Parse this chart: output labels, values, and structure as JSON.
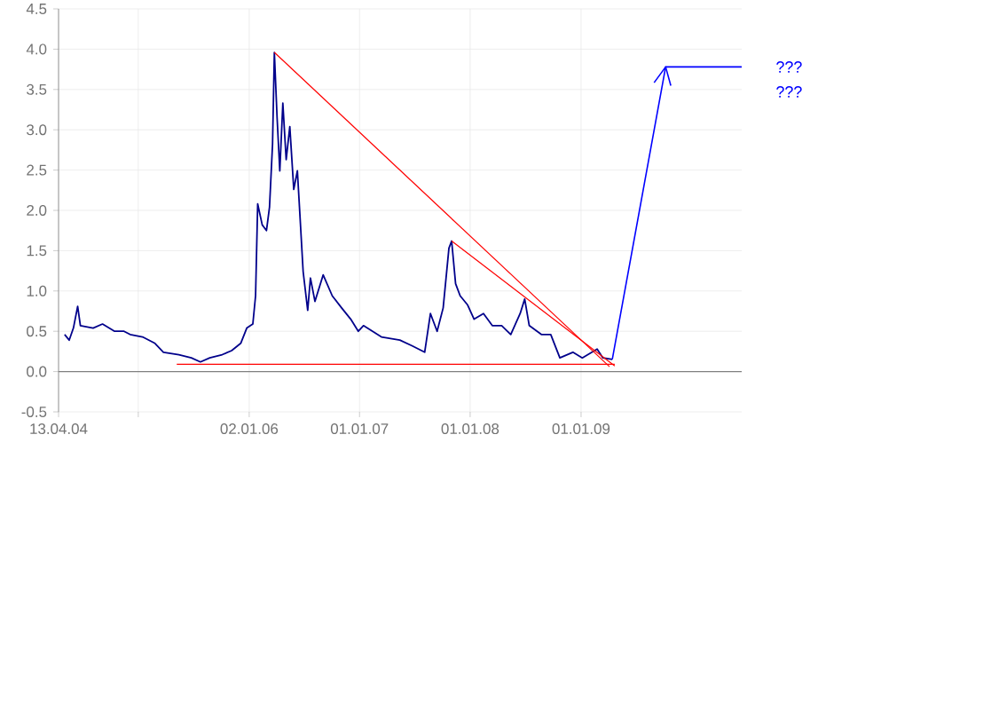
{
  "chart_data": {
    "type": "line",
    "xlim": [
      "2004-04-13",
      "2010-06-15"
    ],
    "ylim": [
      -0.5,
      4.5
    ],
    "xticks": [
      {
        "value": "2004-04-13",
        "label": "13.04.04"
      },
      {
        "value": "2005-01-01",
        "label": null
      },
      {
        "value": "2006-01-02",
        "label": "02.01.06"
      },
      {
        "value": "2007-01-01",
        "label": "01.01.07"
      },
      {
        "value": "2008-01-01",
        "label": "01.01.08"
      },
      {
        "value": "2009-01-01",
        "label": "01.01.09"
      }
    ],
    "yticks": [
      -0.5,
      {
        "value": 0,
        "label": "0.0"
      },
      0.5,
      {
        "value": 1,
        "label": "1.0"
      },
      1.5,
      {
        "value": 2,
        "label": "2.0"
      },
      2.5,
      {
        "value": 3,
        "label": "3.0"
      },
      3.5,
      {
        "value": 4,
        "label": "4.0"
      },
      4.5
    ],
    "grid": true,
    "ref_lines": [
      {
        "axis": "y",
        "value": 0,
        "color": "#808080"
      }
    ],
    "annotations": [
      "???",
      "???"
    ],
    "series": [
      {
        "color": "#00008b",
        "x": [
          "2004-05-03",
          "2004-05-18",
          "2004-06-01",
          "2004-06-15",
          "2004-06-24",
          "2004-08-05",
          "2004-09-05",
          "2004-10-15",
          "2004-11-15",
          "2004-12-05",
          "2005-01-15",
          "2005-02-25",
          "2005-03-25",
          "2005-05-15",
          "2005-06-25",
          "2005-07-25",
          "2005-08-25",
          "2005-10-05",
          "2005-11-05",
          "2005-12-05",
          "2005-12-25",
          "2006-01-14",
          "2006-01-23",
          "2006-01-30",
          "2006-02-14",
          "2006-02-28",
          "2006-03-10",
          "2006-03-20",
          "2006-03-26",
          "2006-04-04",
          "2006-04-13",
          "2006-04-23",
          "2006-05-04",
          "2006-05-16",
          "2006-05-29",
          "2006-06-10",
          "2006-06-19",
          "2006-06-29",
          "2006-07-14",
          "2006-07-23",
          "2006-08-07",
          "2006-09-03",
          "2006-10-03",
          "2006-11-03",
          "2006-12-03",
          "2006-12-28",
          "2007-01-14",
          "2007-03-14",
          "2007-05-14",
          "2007-06-23",
          "2007-08-04",
          "2007-08-23",
          "2007-09-14",
          "2007-10-04",
          "2007-10-23",
          "2007-11-01",
          "2007-11-14",
          "2007-11-29",
          "2007-12-23",
          "2008-01-14",
          "2008-02-14",
          "2008-03-14",
          "2008-04-14",
          "2008-05-14",
          "2008-06-14",
          "2008-06-29",
          "2008-07-14",
          "2008-08-23",
          "2008-09-23",
          "2008-10-23",
          "2008-12-05",
          "2009-01-05",
          "2009-02-23",
          "2009-03-14",
          "2009-04-14"
        ],
        "values": [
          0.46,
          0.39,
          0.54,
          0.81,
          0.57,
          0.54,
          0.59,
          0.5,
          0.5,
          0.46,
          0.43,
          0.35,
          0.24,
          0.21,
          0.17,
          0.12,
          0.17,
          0.21,
          0.26,
          0.35,
          0.54,
          0.59,
          0.94,
          2.08,
          1.82,
          1.75,
          2.04,
          2.82,
          3.96,
          3.15,
          2.49,
          3.33,
          2.63,
          3.04,
          2.26,
          2.49,
          1.9,
          1.24,
          0.76,
          1.16,
          0.87,
          1.2,
          0.94,
          0.79,
          0.65,
          0.5,
          0.57,
          0.43,
          0.39,
          0.32,
          0.24,
          0.72,
          0.5,
          0.79,
          1.53,
          1.62,
          1.09,
          0.94,
          0.83,
          0.65,
          0.72,
          0.57,
          0.57,
          0.46,
          0.72,
          0.9,
          0.57,
          0.46,
          0.46,
          0.17,
          0.24,
          0.17,
          0.28,
          0.17,
          0.15
        ]
      },
      {
        "color": "#ff0000",
        "x": [
          "2006-03-26",
          "2009-04-05"
        ],
        "values": [
          3.96,
          0.06
        ]
      },
      {
        "color": "#ff0000",
        "x": [
          "2007-11-01",
          "2009-04-22"
        ],
        "values": [
          1.62,
          0.07
        ]
      },
      {
        "color": "#ff0000",
        "x": [
          "2005-05-08",
          "2009-04-22"
        ],
        "values": [
          0.09,
          0.09
        ]
      },
      {
        "color": "#0000ff",
        "x": [
          "2009-04-14",
          "2009-10-07",
          "2010-06-15"
        ],
        "values": [
          0.15,
          3.78,
          3.78
        ]
      }
    ]
  }
}
